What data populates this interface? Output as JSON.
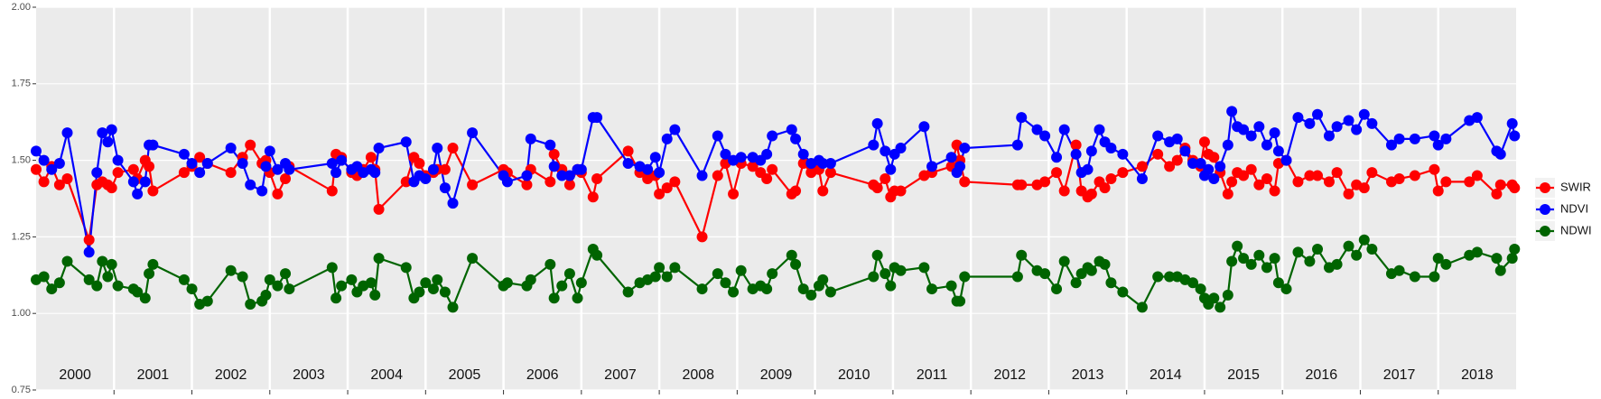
{
  "chart_data": {
    "type": "line",
    "xlim": [
      2000,
      2019
    ],
    "xticks": [
      2001,
      2002,
      2003,
      2004,
      2005,
      2006,
      2007,
      2008,
      2009,
      2010,
      2011,
      2012,
      2013,
      2014,
      2015,
      2016,
      2017,
      2018
    ],
    "year_labels": [
      "2000",
      "2001",
      "2002",
      "2003",
      "2004",
      "2005",
      "2006",
      "2007",
      "2008",
      "2009",
      "2010",
      "2011",
      "2012",
      "2013",
      "2014",
      "2015",
      "2016",
      "2017",
      "2018"
    ],
    "ylim": [
      0.75,
      2.0
    ],
    "yticks": [
      {
        "value": 0.75,
        "label": "0.75"
      },
      {
        "value": 1.0,
        "label": "1.00"
      },
      {
        "value": 1.25,
        "label": "1.25"
      },
      {
        "value": 1.5,
        "label": "1.50"
      },
      {
        "value": 1.75,
        "label": "1.75"
      },
      {
        "value": 2.0,
        "label": "2.00"
      }
    ],
    "grid": true,
    "legend": "right",
    "x": [
      2000.0,
      2000.1,
      2000.2,
      2000.3,
      2000.4,
      2000.68,
      2000.78,
      2000.85,
      2000.92,
      2000.97,
      2001.05,
      2001.25,
      2001.3,
      2001.4,
      2001.45,
      2001.5,
      2001.9,
      2002.0,
      2002.1,
      2002.2,
      2002.5,
      2002.65,
      2002.75,
      2002.9,
      2002.95,
      2003.0,
      2003.1,
      2003.2,
      2003.25,
      2003.8,
      2003.85,
      2003.92,
      2004.05,
      2004.12,
      2004.2,
      2004.3,
      2004.35,
      2004.4,
      2004.75,
      2004.85,
      2004.92,
      2005.0,
      2005.1,
      2005.15,
      2005.25,
      2005.35,
      2005.6,
      2006.0,
      2006.05,
      2006.3,
      2006.35,
      2006.6,
      2006.65,
      2006.75,
      2006.85,
      2006.95,
      2007.0,
      2007.15,
      2007.2,
      2007.6,
      2007.75,
      2007.85,
      2007.95,
      2008.0,
      2008.1,
      2008.2,
      2008.55,
      2008.75,
      2008.85,
      2008.95,
      2009.05,
      2009.2,
      2009.3,
      2009.38,
      2009.45,
      2009.7,
      2009.75,
      2009.85,
      2009.95,
      2010.05,
      2010.1,
      2010.2,
      2010.75,
      2010.8,
      2010.9,
      2010.97,
      2011.02,
      2011.1,
      2011.4,
      2011.5,
      2011.75,
      2011.82,
      2011.86,
      2011.92,
      2012.6,
      2012.65,
      2012.85,
      2012.95,
      2013.1,
      2013.2,
      2013.35,
      2013.42,
      2013.5,
      2013.55,
      2013.65,
      2013.72,
      2013.8,
      2013.95,
      2014.2,
      2014.4,
      2014.55,
      2014.65,
      2014.75,
      2014.85,
      2014.95,
      2015.0,
      2015.05,
      2015.12,
      2015.2,
      2015.3,
      2015.35,
      2015.42,
      2015.5,
      2015.6,
      2015.7,
      2015.8,
      2015.9,
      2015.95,
      2016.05,
      2016.2,
      2016.35,
      2016.45,
      2016.6,
      2016.7,
      2016.85,
      2016.95,
      2017.05,
      2017.15,
      2017.4,
      2017.5,
      2017.7,
      2017.95,
      2018.0,
      2018.1,
      2018.4,
      2018.5,
      2018.75,
      2018.8,
      2018.95,
      2018.98
    ],
    "series": [
      {
        "name": "SWIR",
        "color": "#ff0000",
        "values": [
          1.47,
          1.43,
          1.48,
          1.42,
          1.44,
          1.24,
          1.42,
          1.43,
          1.42,
          1.41,
          1.46,
          1.47,
          1.44,
          1.5,
          1.48,
          1.4,
          1.46,
          1.48,
          1.51,
          1.49,
          1.46,
          1.51,
          1.55,
          1.49,
          1.5,
          1.46,
          1.39,
          1.44,
          1.48,
          1.4,
          1.52,
          1.51,
          1.46,
          1.45,
          1.47,
          1.51,
          1.47,
          1.34,
          1.43,
          1.51,
          1.49,
          1.45,
          1.46,
          1.47,
          1.47,
          1.54,
          1.42,
          1.47,
          1.46,
          1.42,
          1.47,
          1.43,
          1.52,
          1.47,
          1.42,
          1.47,
          1.46,
          1.38,
          1.44,
          1.53,
          1.46,
          1.44,
          1.45,
          1.39,
          1.41,
          1.43,
          1.25,
          1.45,
          1.49,
          1.39,
          1.49,
          1.48,
          1.46,
          1.44,
          1.47,
          1.39,
          1.4,
          1.49,
          1.46,
          1.47,
          1.4,
          1.46,
          1.42,
          1.41,
          1.44,
          1.38,
          1.4,
          1.4,
          1.45,
          1.46,
          1.48,
          1.55,
          1.5,
          1.43,
          1.42,
          1.42,
          1.42,
          1.43,
          1.46,
          1.4,
          1.55,
          1.4,
          1.38,
          1.39,
          1.43,
          1.41,
          1.44,
          1.46,
          1.48,
          1.52,
          1.48,
          1.5,
          1.54,
          1.5,
          1.48,
          1.56,
          1.52,
          1.51,
          1.46,
          1.39,
          1.43,
          1.46,
          1.45,
          1.47,
          1.42,
          1.44,
          1.4,
          1.49,
          1.5,
          1.43,
          1.45,
          1.45,
          1.43,
          1.46,
          1.39,
          1.42,
          1.41,
          1.46,
          1.43,
          1.44,
          1.45,
          1.47,
          1.4,
          1.43,
          1.43,
          1.45,
          1.39,
          1.42,
          1.42,
          1.41
        ]
      },
      {
        "name": "NDVI",
        "color": "#0000ff",
        "values": [
          1.53,
          1.5,
          1.47,
          1.49,
          1.59,
          1.2,
          1.46,
          1.59,
          1.56,
          1.6,
          1.5,
          1.43,
          1.39,
          1.43,
          1.55,
          1.55,
          1.52,
          1.49,
          1.46,
          1.49,
          1.54,
          1.49,
          1.42,
          1.4,
          1.48,
          1.53,
          1.47,
          1.49,
          1.47,
          1.49,
          1.46,
          1.5,
          1.47,
          1.48,
          1.46,
          1.47,
          1.46,
          1.54,
          1.56,
          1.43,
          1.45,
          1.44,
          1.47,
          1.54,
          1.41,
          1.36,
          1.59,
          1.45,
          1.43,
          1.45,
          1.57,
          1.55,
          1.48,
          1.45,
          1.45,
          1.47,
          1.47,
          1.64,
          1.64,
          1.49,
          1.48,
          1.47,
          1.51,
          1.46,
          1.57,
          1.6,
          1.45,
          1.58,
          1.52,
          1.5,
          1.51,
          1.51,
          1.5,
          1.52,
          1.58,
          1.6,
          1.57,
          1.52,
          1.49,
          1.5,
          1.49,
          1.49,
          1.55,
          1.62,
          1.53,
          1.47,
          1.52,
          1.54,
          1.61,
          1.48,
          1.51,
          1.46,
          1.48,
          1.54,
          1.55,
          1.64,
          1.6,
          1.58,
          1.51,
          1.6,
          1.52,
          1.46,
          1.47,
          1.53,
          1.6,
          1.56,
          1.54,
          1.52,
          1.44,
          1.58,
          1.56,
          1.57,
          1.53,
          1.49,
          1.49,
          1.45,
          1.47,
          1.44,
          1.48,
          1.55,
          1.66,
          1.61,
          1.6,
          1.58,
          1.61,
          1.55,
          1.59,
          1.53,
          1.5,
          1.64,
          1.62,
          1.65,
          1.58,
          1.61,
          1.63,
          1.6,
          1.65,
          1.62,
          1.55,
          1.57,
          1.57,
          1.58,
          1.55,
          1.57,
          1.63,
          1.64,
          1.53,
          1.52,
          1.62,
          1.58
        ]
      },
      {
        "name": "NDWI",
        "color": "#006400",
        "values": [
          1.11,
          1.12,
          1.08,
          1.1,
          1.17,
          1.11,
          1.09,
          1.17,
          1.12,
          1.16,
          1.09,
          1.08,
          1.07,
          1.05,
          1.13,
          1.16,
          1.11,
          1.08,
          1.03,
          1.04,
          1.14,
          1.12,
          1.03,
          1.04,
          1.06,
          1.11,
          1.09,
          1.13,
          1.08,
          1.15,
          1.05,
          1.09,
          1.11,
          1.07,
          1.09,
          1.1,
          1.06,
          1.18,
          1.15,
          1.05,
          1.07,
          1.1,
          1.08,
          1.11,
          1.07,
          1.02,
          1.18,
          1.09,
          1.1,
          1.09,
          1.11,
          1.16,
          1.05,
          1.09,
          1.13,
          1.05,
          1.1,
          1.21,
          1.19,
          1.07,
          1.1,
          1.11,
          1.12,
          1.15,
          1.12,
          1.15,
          1.08,
          1.13,
          1.1,
          1.07,
          1.14,
          1.08,
          1.09,
          1.08,
          1.13,
          1.19,
          1.16,
          1.08,
          1.06,
          1.09,
          1.11,
          1.07,
          1.12,
          1.19,
          1.13,
          1.09,
          1.15,
          1.14,
          1.15,
          1.08,
          1.09,
          1.04,
          1.04,
          1.12,
          1.12,
          1.19,
          1.14,
          1.13,
          1.08,
          1.17,
          1.1,
          1.13,
          1.15,
          1.14,
          1.17,
          1.16,
          1.1,
          1.07,
          1.02,
          1.12,
          1.12,
          1.12,
          1.11,
          1.1,
          1.08,
          1.05,
          1.03,
          1.05,
          1.02,
          1.06,
          1.17,
          1.22,
          1.18,
          1.16,
          1.19,
          1.15,
          1.18,
          1.1,
          1.08,
          1.2,
          1.17,
          1.21,
          1.15,
          1.16,
          1.22,
          1.19,
          1.24,
          1.21,
          1.13,
          1.14,
          1.12,
          1.12,
          1.18,
          1.16,
          1.19,
          1.2,
          1.18,
          1.14,
          1.18,
          1.21
        ]
      }
    ]
  }
}
